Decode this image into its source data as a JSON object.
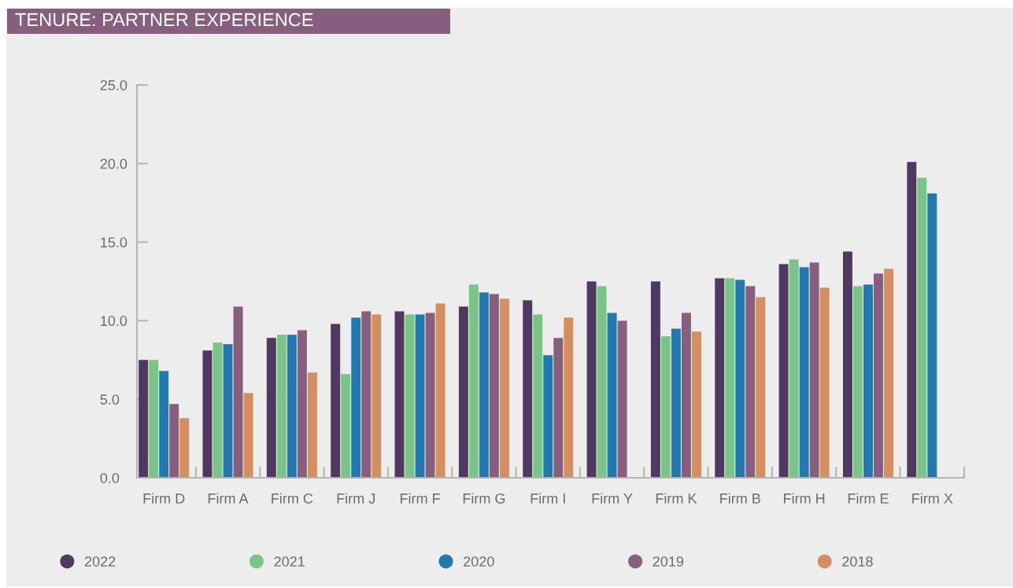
{
  "chart_data": {
    "type": "bar",
    "title": "TENURE: PARTNER EXPERIENCE",
    "categories": [
      "Firm D",
      "Firm A",
      "Firm C",
      "Firm J",
      "Firm F",
      "Firm G",
      "Firm I",
      "Firm Y",
      "Firm K",
      "Firm B",
      "Firm H",
      "Firm E",
      "Firm X"
    ],
    "series": [
      {
        "name": "2022",
        "color": "#4f3961",
        "values": [
          7.5,
          8.1,
          8.9,
          9.8,
          10.6,
          10.9,
          11.3,
          12.5,
          12.5,
          12.7,
          13.6,
          14.4,
          20.1
        ]
      },
      {
        "name": "2021",
        "color": "#79c583",
        "values": [
          7.5,
          8.6,
          9.1,
          6.6,
          10.4,
          12.3,
          10.4,
          12.2,
          9.0,
          12.7,
          13.9,
          12.2,
          19.1
        ]
      },
      {
        "name": "2020",
        "color": "#217aaf",
        "values": [
          6.8,
          8.5,
          9.1,
          10.2,
          10.4,
          11.8,
          7.8,
          10.5,
          9.5,
          12.6,
          13.4,
          12.3,
          18.1
        ]
      },
      {
        "name": "2019",
        "color": "#875f7e",
        "values": [
          4.7,
          10.9,
          9.4,
          10.6,
          10.5,
          11.7,
          8.9,
          10.0,
          10.5,
          12.2,
          13.7,
          13.0,
          null
        ]
      },
      {
        "name": "2018",
        "color": "#d78e5f",
        "values": [
          3.8,
          5.4,
          6.7,
          10.4,
          11.1,
          11.4,
          10.2,
          null,
          9.3,
          11.5,
          12.1,
          13.3,
          null
        ]
      }
    ],
    "ylim": [
      0,
      25
    ],
    "yticks": [
      {
        "value": 0,
        "label": "0.0"
      },
      {
        "value": 5,
        "label": "5.0"
      },
      {
        "value": 10,
        "label": "10.0"
      },
      {
        "value": 15,
        "label": "15.0"
      },
      {
        "value": 20,
        "label": "20.0"
      },
      {
        "value": 25,
        "label": "25.0"
      }
    ],
    "grid": false,
    "legend": "bottom",
    "marker": "circle"
  }
}
